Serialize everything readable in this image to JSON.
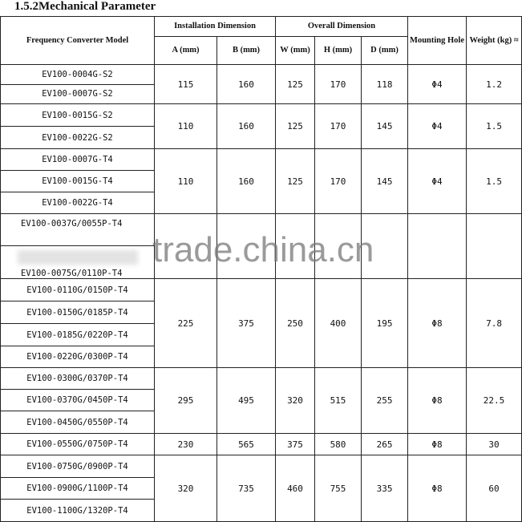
{
  "title": "1.5.2Mechanical Parameter",
  "headers": {
    "model": "Frequency Converter Model",
    "installation": "Installation Dimension",
    "overall": "Overall Dimension",
    "mounting": "Mounting Hole",
    "weight": "Weight (kg) ≈",
    "a": "A (mm)",
    "b": "B (mm)",
    "w": "W (mm)",
    "h": "H (mm)",
    "d": "D (mm)"
  },
  "groups": [
    {
      "models": [
        "EV100-0004G-S2",
        "EV100-0007G-S2"
      ],
      "a": "115",
      "b": "160",
      "w": "125",
      "h": "170",
      "d": "118",
      "hole": "Φ4",
      "weight": "1.2"
    },
    {
      "models": [
        "EV100-0015G-S2",
        "EV100-0022G-S2"
      ],
      "a": "110",
      "b": "160",
      "w": "125",
      "h": "170",
      "d": "145",
      "hole": "Φ4",
      "weight": "1.5"
    },
    {
      "models": [
        "EV100-0007G-T4",
        "EV100-0015G-T4",
        "EV100-0022G-T4"
      ],
      "a": "110",
      "b": "160",
      "w": "125",
      "h": "170",
      "d": "145",
      "hole": "Φ4",
      "weight": "1.5"
    },
    {
      "models": [
        "EV100-0037G/0055P-T4",
        "EV100-0075G/0110P-T4"
      ],
      "a": "",
      "b": "",
      "w": "",
      "h": "",
      "d": "",
      "hole": "",
      "weight": ""
    },
    {
      "models": [
        "EV100-0110G/0150P-T4",
        "EV100-0150G/0185P-T4",
        "EV100-0185G/0220P-T4",
        "EV100-0220G/0300P-T4"
      ],
      "a": "225",
      "b": "375",
      "w": "250",
      "h": "400",
      "d": "195",
      "hole": "Φ8",
      "weight": "7.8"
    },
    {
      "models": [
        "EV100-0300G/0370P-T4",
        "EV100-0370G/0450P-T4",
        "EV100-0450G/0550P-T4"
      ],
      "a": "295",
      "b": "495",
      "w": "320",
      "h": "515",
      "d": "255",
      "hole": "Φ8",
      "weight": "22.5"
    },
    {
      "models": [
        "EV100-0550G/0750P-T4"
      ],
      "a": "230",
      "b": "565",
      "w": "375",
      "h": "580",
      "d": "265",
      "hole": "Φ8",
      "weight": "30"
    },
    {
      "models": [
        "EV100-0750G/0900P-T4",
        "EV100-0900G/1100P-T4",
        "EV100-1100G/1320P-T4"
      ],
      "a": "320",
      "b": "735",
      "w": "460",
      "h": "755",
      "d": "335",
      "hole": "Φ8",
      "weight": "60"
    }
  ],
  "watermark": "trade.china.cn"
}
